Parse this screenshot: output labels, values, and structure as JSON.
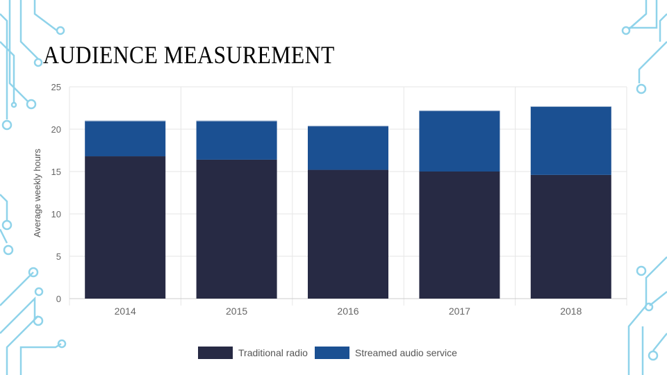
{
  "slide": {
    "title": "AUDIENCE MEASUREMENT"
  },
  "colors": {
    "traditional": "#272a44",
    "streamed": "#1b5092",
    "grid": "#e6e6e6",
    "decor": "#8fd3ea"
  },
  "chart_data": {
    "type": "bar",
    "stacked": true,
    "categories": [
      "2014",
      "2015",
      "2016",
      "2017",
      "2018"
    ],
    "series": [
      {
        "name": "Traditional radio",
        "values": [
          16.8,
          16.4,
          15.2,
          15.0,
          14.6
        ]
      },
      {
        "name": "Streamed audio service",
        "values": [
          4.2,
          4.6,
          5.2,
          7.2,
          8.1
        ]
      }
    ],
    "title": "",
    "xlabel": "",
    "ylabel": "Average weekly hours",
    "ylim": [
      0,
      25
    ],
    "yticks": [
      "0",
      "5",
      "10",
      "15",
      "20",
      "25"
    ],
    "grid": true,
    "legend": "bottom"
  }
}
